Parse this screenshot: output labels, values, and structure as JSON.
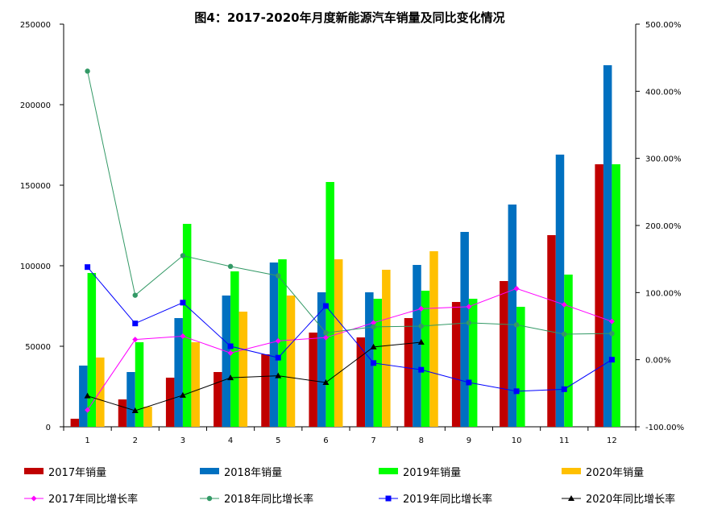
{
  "chart_data": {
    "type": "bar",
    "title": "图4：2017-2020年月度新能源汽车销量及同比变化情况",
    "categories": [
      "1",
      "2",
      "3",
      "4",
      "5",
      "6",
      "7",
      "8",
      "9",
      "10",
      "11",
      "12"
    ],
    "y_left": {
      "min": 0,
      "max": 250000,
      "ticks": [
        "0",
        "50000",
        "100000",
        "150000",
        "200000",
        "250000"
      ]
    },
    "y_right": {
      "min": -100,
      "max": 500,
      "ticks": [
        "-100.00%",
        "0.00%",
        "100.00%",
        "200.00%",
        "300.00%",
        "400.00%",
        "500.00%"
      ]
    },
    "series": [
      {
        "name": "2017年销量",
        "kind": "bar",
        "color": "#C00000",
        "values": [
          5000,
          17000,
          30500,
          34000,
          45000,
          58500,
          55500,
          67500,
          77500,
          90500,
          119000,
          163000
        ]
      },
      {
        "name": "2018年销量",
        "kind": "bar",
        "color": "#0070C0",
        "values": [
          38000,
          34000,
          67500,
          81500,
          102000,
          83500,
          83500,
          100500,
          121000,
          138000,
          169000,
          224500
        ]
      },
      {
        "name": "2019年销量",
        "kind": "bar",
        "color": "#00FF00",
        "values": [
          95500,
          52500,
          126000,
          96500,
          104000,
          152000,
          79500,
          84500,
          79500,
          74500,
          94500,
          163000
        ]
      },
      {
        "name": "2020年销量",
        "kind": "bar",
        "color": "#FFC000",
        "values": [
          43000,
          12500,
          52500,
          71500,
          81500,
          104000,
          97500,
          109000,
          null,
          null,
          null,
          null
        ]
      }
    ],
    "lines": [
      {
        "name": "2017年同比增长率",
        "color": "#FF00FF",
        "marker": "diamond",
        "values": [
          -75,
          30,
          35,
          10,
          28,
          33,
          55,
          76,
          79,
          106,
          82,
          57
        ]
      },
      {
        "name": "2018年同比增长率",
        "color": "#339966",
        "marker": "circle",
        "values": [
          430,
          96,
          155,
          139,
          125,
          40,
          49,
          50,
          55,
          52,
          38,
          39
        ]
      },
      {
        "name": "2019年同比增长率",
        "color": "#0000FF",
        "marker": "square",
        "values": [
          138,
          54,
          85,
          20,
          3,
          80,
          -5,
          -15,
          -34,
          -47,
          -44,
          0
        ]
      },
      {
        "name": "2020年同比增长率",
        "color": "#000000",
        "marker": "triangle",
        "values": [
          -54,
          -76,
          -53,
          -27,
          -24,
          -34,
          19,
          26,
          null,
          null,
          null,
          null
        ]
      }
    ],
    "legend_position": "bottom",
    "grid": false
  }
}
